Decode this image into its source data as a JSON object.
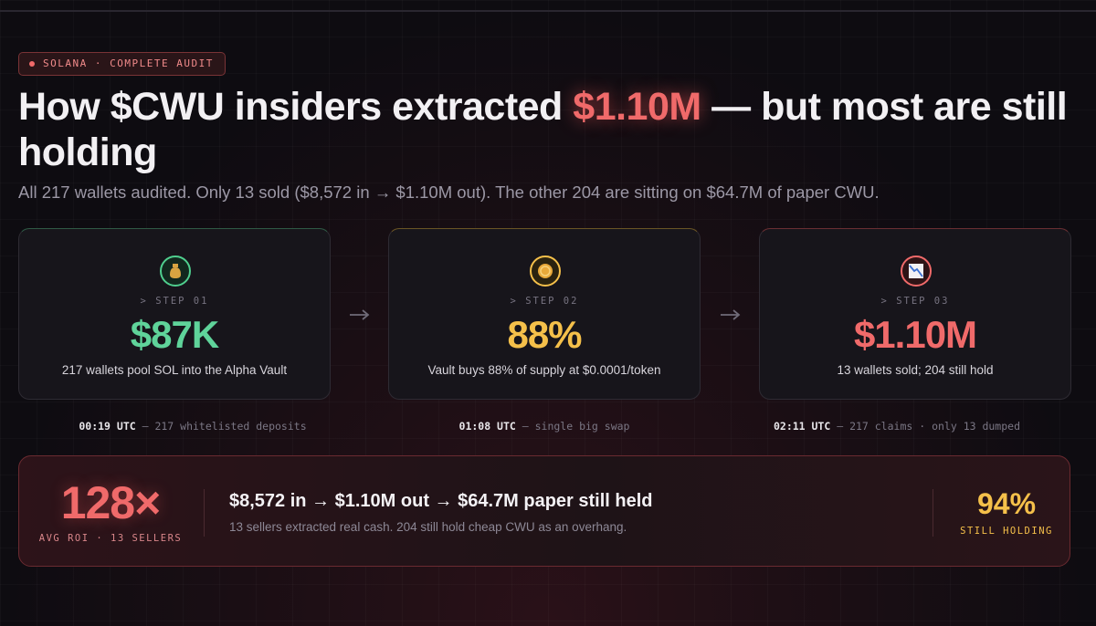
{
  "badge": "SOLANA · COMPLETE AUDIT",
  "title": {
    "before": "How $CWU insiders extracted ",
    "highlight": "$1.10M",
    "after": " — but most are still holding"
  },
  "subtitle": "All 217 wallets audited. Only 13 sold ($8,572 in → $1.10M out). The other 204 are sitting on $64.7M of paper CWU.",
  "steps": [
    {
      "label": "> STEP 01",
      "value": "$87K",
      "description": "217 wallets pool SOL into the Alpha Vault",
      "time": "00:19 UTC",
      "note": "— 217 whitelisted deposits"
    },
    {
      "label": "> STEP 02",
      "value": "88%",
      "description": "Vault buys 88% of supply at $0.0001/token",
      "time": "01:08 UTC",
      "note": "— single big swap"
    },
    {
      "label": "> STEP 03",
      "value": "$1.10M",
      "description": "13 wallets sold; 204 still hold",
      "time": "02:11 UTC",
      "note": "— 217 claims · only 13 dumped"
    }
  ],
  "summary": {
    "roi": "128×",
    "roi_label": "AVG ROI · 13 SELLERS",
    "headline": "$8,572 in → $1.10M out → $64.7M paper still held",
    "detail": "13 sellers extracted real cash. 204 still hold cheap CWU as an overhang.",
    "holding": "94%",
    "holding_label": "STILL HOLDING"
  }
}
